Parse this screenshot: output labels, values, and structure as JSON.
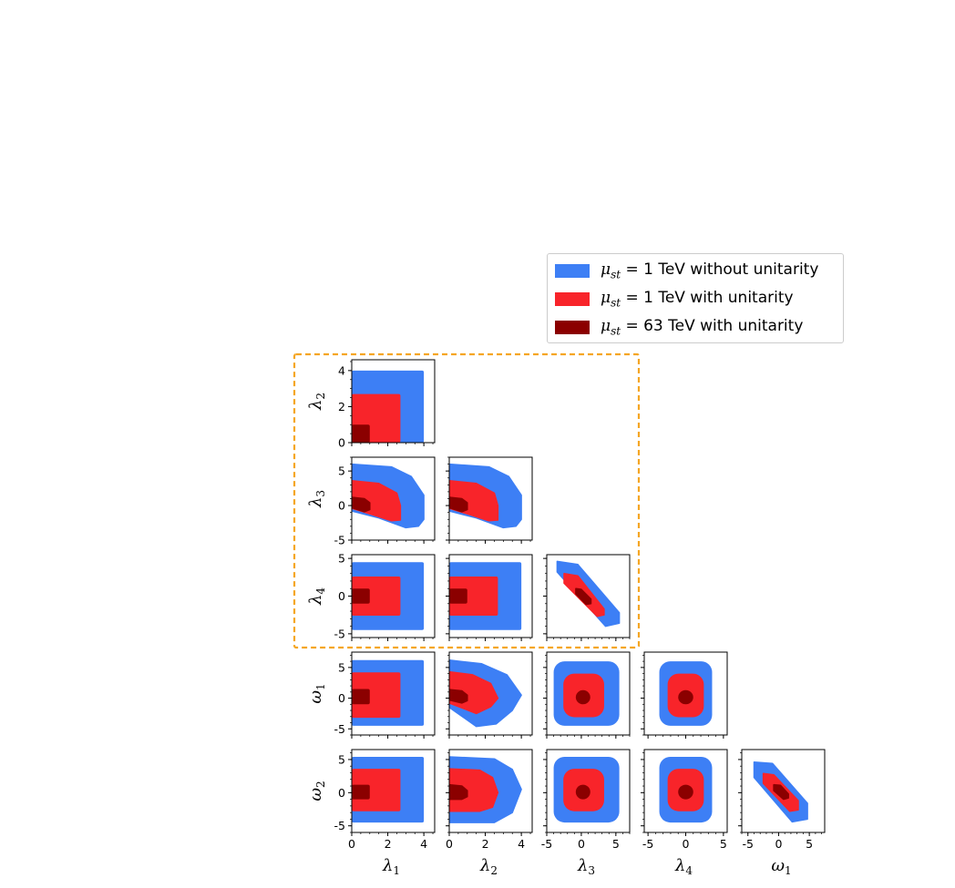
{
  "chart_data": {
    "type": "corner-plot",
    "parameters": [
      "λ1",
      "λ2",
      "λ3",
      "λ4",
      "ω1",
      "ω2"
    ],
    "axis_labels": {
      "λ1": {
        "sym": "λ",
        "sub": "1"
      },
      "λ2": {
        "sym": "λ",
        "sub": "2"
      },
      "λ3": {
        "sym": "λ",
        "sub": "3"
      },
      "λ4": {
        "sym": "λ",
        "sub": "4"
      },
      "ω1": {
        "sym": "ω",
        "sub": "1"
      },
      "ω2": {
        "sym": "ω",
        "sub": "2"
      }
    },
    "ranges": {
      "λ1": [
        0,
        4.6
      ],
      "λ2": [
        0,
        4.6
      ],
      "λ3": [
        -5,
        7
      ],
      "λ4": [
        -5.5,
        5.5
      ],
      "ω1": [
        -6,
        7.5
      ],
      "ω2": [
        -6,
        6.5
      ]
    },
    "ticks": {
      "λ1": [
        0,
        2,
        4
      ],
      "λ2": [
        0,
        2,
        4
      ],
      "λ3": [
        -5,
        0,
        5
      ],
      "λ4": [
        -5,
        0,
        5
      ],
      "ω1": [
        -5,
        0,
        5
      ],
      "ω2": [
        -5,
        0,
        5
      ]
    },
    "tick_labels": {
      "λ1": [
        "0",
        "2",
        "4"
      ],
      "λ2": [
        "0",
        "2",
        "4"
      ],
      "λ3": [
        "-5",
        "0",
        "5"
      ],
      "λ4": [
        "-5",
        "0",
        "5"
      ],
      "ω1": [
        "-5",
        "0",
        "5"
      ],
      "ω2": [
        "-5",
        "0",
        "5"
      ]
    },
    "series": [
      {
        "name": "μ_st = 1 TeV without unitarity",
        "color": "#3d7ff5"
      },
      {
        "name": "μ_st = 1 TeV with unitarity",
        "color": "#f8242a"
      },
      {
        "name": "μ_st = 63 TeV with unitarity",
        "color": "#8b0000"
      }
    ],
    "regions": [
      {
        "x": "λ1",
        "y": "λ2",
        "shapes": [
          {
            "kind": "rect",
            "x": [
              0,
              4
            ],
            "y": [
              0,
              4
            ]
          },
          {
            "kind": "rect",
            "x": [
              0,
              2.7
            ],
            "y": [
              0,
              2.7
            ]
          },
          {
            "kind": "rect",
            "x": [
              0,
              1
            ],
            "y": [
              0,
              1
            ]
          }
        ]
      },
      {
        "x": "λ1",
        "y": "λ3",
        "shapes": [
          {
            "kind": "poly",
            "pts": [
              [
                0,
                6
              ],
              [
                2.2,
                5.6
              ],
              [
                3.3,
                4.2
              ],
              [
                4,
                1.5
              ],
              [
                4,
                -2
              ],
              [
                3.7,
                -3
              ],
              [
                3,
                -3.2
              ],
              [
                1.5,
                -1.8
              ],
              [
                0,
                -0.8
              ]
            ]
          },
          {
            "kind": "poly",
            "pts": [
              [
                0,
                3.6
              ],
              [
                1.5,
                3.2
              ],
              [
                2.5,
                1.8
              ],
              [
                2.7,
                0
              ],
              [
                2.7,
                -2.1
              ],
              [
                2.2,
                -2.2
              ],
              [
                1,
                -1.2
              ],
              [
                0,
                -0.4
              ]
            ]
          },
          {
            "kind": "poly",
            "pts": [
              [
                0,
                1.2
              ],
              [
                0.7,
                1
              ],
              [
                1,
                0.4
              ],
              [
                1,
                -0.6
              ],
              [
                0.7,
                -0.9
              ],
              [
                0,
                -0.3
              ]
            ]
          }
        ]
      },
      {
        "x": "λ2",
        "y": "λ3",
        "shapes": [
          {
            "kind": "poly",
            "pts": [
              [
                0,
                6
              ],
              [
                2.2,
                5.6
              ],
              [
                3.3,
                4.2
              ],
              [
                4,
                1.5
              ],
              [
                4,
                -2
              ],
              [
                3.7,
                -3
              ],
              [
                3,
                -3.2
              ],
              [
                1.5,
                -1.8
              ],
              [
                0,
                -0.8
              ]
            ]
          },
          {
            "kind": "poly",
            "pts": [
              [
                0,
                3.6
              ],
              [
                1.5,
                3.2
              ],
              [
                2.5,
                1.8
              ],
              [
                2.7,
                0
              ],
              [
                2.7,
                -2.1
              ],
              [
                2.2,
                -2.2
              ],
              [
                1,
                -1.2
              ],
              [
                0,
                -0.4
              ]
            ]
          },
          {
            "kind": "poly",
            "pts": [
              [
                0,
                1.2
              ],
              [
                0.7,
                1
              ],
              [
                1,
                0.4
              ],
              [
                1,
                -0.6
              ],
              [
                0.7,
                -0.9
              ],
              [
                0,
                -0.3
              ]
            ]
          }
        ]
      },
      {
        "x": "λ1",
        "y": "λ4",
        "shapes": [
          {
            "kind": "rect",
            "x": [
              0,
              4
            ],
            "y": [
              -4.5,
              4.5
            ]
          },
          {
            "kind": "rect",
            "x": [
              0,
              2.7
            ],
            "y": [
              -2.6,
              2.6
            ]
          },
          {
            "kind": "rect",
            "x": [
              0,
              1
            ],
            "y": [
              -1,
              1
            ]
          }
        ]
      },
      {
        "x": "λ2",
        "y": "λ4",
        "shapes": [
          {
            "kind": "rect",
            "x": [
              0,
              4
            ],
            "y": [
              -4.5,
              4.5
            ]
          },
          {
            "kind": "rect",
            "x": [
              0,
              2.7
            ],
            "y": [
              -2.6,
              2.6
            ]
          },
          {
            "kind": "rect",
            "x": [
              0,
              1
            ],
            "y": [
              -1,
              1
            ]
          }
        ]
      },
      {
        "x": "λ3",
        "y": "λ4",
        "shapes": [
          {
            "kind": "poly",
            "pts": [
              [
                -3.5,
                4.6
              ],
              [
                -0.5,
                4.2
              ],
              [
                5.5,
                -2.2
              ],
              [
                5.5,
                -3.6
              ],
              [
                3.5,
                -4
              ],
              [
                -3.5,
                3.2
              ]
            ]
          },
          {
            "kind": "poly",
            "pts": [
              [
                -2.5,
                3
              ],
              [
                -0.5,
                2.7
              ],
              [
                3.3,
                -1.7
              ],
              [
                3.3,
                -2.5
              ],
              [
                2.3,
                -2.7
              ],
              [
                -2.5,
                1.7
              ]
            ]
          },
          {
            "kind": "poly",
            "pts": [
              [
                -0.8,
                1
              ],
              [
                0,
                0.9
              ],
              [
                1.4,
                -0.4
              ],
              [
                1.4,
                -1
              ],
              [
                0.7,
                -1.1
              ],
              [
                -0.8,
                0.3
              ]
            ]
          }
        ]
      },
      {
        "x": "λ1",
        "y": "ω1",
        "shapes": [
          {
            "kind": "rect",
            "x": [
              0,
              4
            ],
            "y": [
              -4.5,
              6.2
            ]
          },
          {
            "kind": "rect",
            "x": [
              0,
              2.7
            ],
            "y": [
              -3.2,
              4.2
            ]
          },
          {
            "kind": "rect",
            "x": [
              0,
              1
            ],
            "y": [
              -1,
              1.5
            ]
          }
        ]
      },
      {
        "x": "λ2",
        "y": "ω1",
        "shapes": [
          {
            "kind": "poly",
            "pts": [
              [
                0,
                6.2
              ],
              [
                1.8,
                5.6
              ],
              [
                3.2,
                3.8
              ],
              [
                4,
                0.5
              ],
              [
                3.5,
                -2
              ],
              [
                2.6,
                -4.2
              ],
              [
                1.5,
                -4.6
              ],
              [
                0,
                -1.5
              ]
            ]
          },
          {
            "kind": "poly",
            "pts": [
              [
                0,
                4.3
              ],
              [
                1.3,
                3.8
              ],
              [
                2.3,
                2.4
              ],
              [
                2.7,
                0
              ],
              [
                2.3,
                -1.4
              ],
              [
                1.5,
                -2.5
              ],
              [
                0,
                -0.8
              ]
            ]
          },
          {
            "kind": "poly",
            "pts": [
              [
                0,
                1.4
              ],
              [
                0.7,
                1.2
              ],
              [
                1,
                0.5
              ],
              [
                1,
                -0.4
              ],
              [
                0.7,
                -0.8
              ],
              [
                0,
                -0.3
              ]
            ]
          }
        ]
      },
      {
        "x": "λ3",
        "y": "ω1",
        "shapes": [
          {
            "kind": "rect",
            "x": [
              -4,
              5.5
            ],
            "y": [
              -4.5,
              6
            ],
            "r": 1.0
          },
          {
            "kind": "rect",
            "x": [
              -2.6,
              3.3
            ],
            "y": [
              -3.1,
              4
            ],
            "r": 0.8
          },
          {
            "kind": "rect",
            "x": [
              -0.8,
              1.3
            ],
            "y": [
              -1,
              1.3
            ],
            "r": 0.5
          }
        ]
      },
      {
        "x": "λ4",
        "y": "ω1",
        "shapes": [
          {
            "kind": "rect",
            "x": [
              -3.5,
              3.5
            ],
            "y": [
              -4.5,
              6
            ],
            "r": 1.0
          },
          {
            "kind": "rect",
            "x": [
              -2.4,
              2.4
            ],
            "y": [
              -3.1,
              4
            ],
            "r": 0.8
          },
          {
            "kind": "rect",
            "x": [
              -1,
              1
            ],
            "y": [
              -1,
              1.3
            ],
            "r": 0.5
          }
        ]
      },
      {
        "x": "λ1",
        "y": "ω2",
        "shapes": [
          {
            "kind": "rect",
            "x": [
              0,
              4
            ],
            "y": [
              -4.5,
              5.4
            ]
          },
          {
            "kind": "rect",
            "x": [
              0,
              2.7
            ],
            "y": [
              -2.8,
              3.6
            ]
          },
          {
            "kind": "rect",
            "x": [
              0,
              1
            ],
            "y": [
              -1,
              1.2
            ]
          }
        ]
      },
      {
        "x": "λ2",
        "y": "ω2",
        "shapes": [
          {
            "kind": "poly",
            "pts": [
              [
                0,
                5.4
              ],
              [
                2.5,
                5.1
              ],
              [
                3.5,
                3.5
              ],
              [
                4,
                0.5
              ],
              [
                3.5,
                -3
              ],
              [
                2.5,
                -4.5
              ],
              [
                0,
                -4.5
              ]
            ]
          },
          {
            "kind": "poly",
            "pts": [
              [
                0,
                3.6
              ],
              [
                1.7,
                3.4
              ],
              [
                2.4,
                2.3
              ],
              [
                2.7,
                0
              ],
              [
                2.4,
                -2.2
              ],
              [
                1.7,
                -2.8
              ],
              [
                0,
                -2.8
              ]
            ]
          },
          {
            "kind": "poly",
            "pts": [
              [
                0,
                1.2
              ],
              [
                0.7,
                1
              ],
              [
                1,
                0.3
              ],
              [
                1,
                -0.6
              ],
              [
                0.7,
                -1
              ],
              [
                0,
                -1
              ]
            ]
          }
        ]
      },
      {
        "x": "λ3",
        "y": "ω2",
        "shapes": [
          {
            "kind": "rect",
            "x": [
              -4,
              5.5
            ],
            "y": [
              -4.5,
              5.4
            ],
            "r": 1.0
          },
          {
            "kind": "rect",
            "x": [
              -2.6,
              3.3
            ],
            "y": [
              -2.8,
              3.6
            ],
            "r": 0.8
          },
          {
            "kind": "rect",
            "x": [
              -0.8,
              1.3
            ],
            "y": [
              -1,
              1.2
            ],
            "r": 0.5
          }
        ]
      },
      {
        "x": "λ4",
        "y": "ω2",
        "shapes": [
          {
            "kind": "rect",
            "x": [
              -3.5,
              3.5
            ],
            "y": [
              -4.5,
              5.4
            ],
            "r": 1.0
          },
          {
            "kind": "rect",
            "x": [
              -2.4,
              2.4
            ],
            "y": [
              -2.8,
              3.6
            ],
            "r": 0.8
          },
          {
            "kind": "rect",
            "x": [
              -1,
              1
            ],
            "y": [
              -1,
              1.2
            ],
            "r": 0.5
          }
        ]
      },
      {
        "x": "ω1",
        "y": "ω2",
        "shapes": [
          {
            "kind": "poly",
            "pts": [
              [
                -4,
                4.6
              ],
              [
                -1,
                4.4
              ],
              [
                4.7,
                -1.6
              ],
              [
                4.7,
                -4
              ],
              [
                2.2,
                -4.4
              ],
              [
                -4,
                2.3
              ]
            ]
          },
          {
            "kind": "poly",
            "pts": [
              [
                -2.5,
                2.9
              ],
              [
                -0.8,
                2.7
              ],
              [
                3.2,
                -1.2
              ],
              [
                3.2,
                -2.6
              ],
              [
                1.8,
                -2.8
              ],
              [
                -2.5,
                1.4
              ]
            ]
          },
          {
            "kind": "poly",
            "pts": [
              [
                -0.8,
                1.2
              ],
              [
                0.3,
                1.1
              ],
              [
                1.6,
                -0.2
              ],
              [
                1.6,
                -0.8
              ],
              [
                0.8,
                -1
              ],
              [
                -0.8,
                0.3
              ]
            ]
          }
        ]
      }
    ],
    "highlight": {
      "description": "dashed box",
      "color": "#f5a623"
    }
  },
  "legend": {
    "items": [
      {
        "sym": "μ",
        "sub": "st",
        "text": " = 1 TeV without unitarity"
      },
      {
        "sym": "μ",
        "sub": "st",
        "text": " = 1 TeV with unitarity"
      },
      {
        "sym": "μ",
        "sub": "st",
        "text": " = 63 TeV with unitarity"
      }
    ]
  }
}
